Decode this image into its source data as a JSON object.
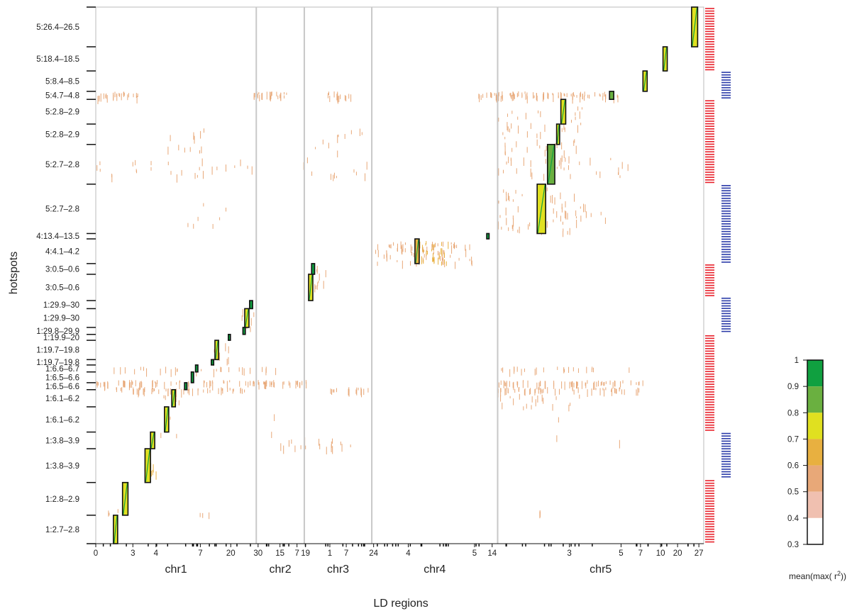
{
  "chart_data": {
    "type": "heatmap",
    "xlabel": "LD regions",
    "ylabel": "hotspots",
    "legend": {
      "title": "mean(max( r",
      "title_sup": "2",
      "title_end": "))",
      "ticks": [
        "1",
        "0.9",
        "0.8",
        "0.7",
        "0.6",
        "0.5",
        "0.4",
        "0.3"
      ],
      "scale": [
        {
          "from": 0.3,
          "to": 0.4,
          "color": "#ffffff"
        },
        {
          "from": 0.4,
          "to": 0.5,
          "color": "#f0c0b0"
        },
        {
          "from": 0.5,
          "to": 0.6,
          "color": "#e8a878"
        },
        {
          "from": 0.6,
          "to": 0.7,
          "color": "#e8b040"
        },
        {
          "from": 0.7,
          "to": 0.8,
          "color": "#e0e020"
        },
        {
          "from": 0.8,
          "to": 0.9,
          "color": "#6ab040"
        },
        {
          "from": 0.9,
          "to": 1.0,
          "color": "#10a040"
        }
      ]
    },
    "chromosomes": [
      {
        "name": "chr1",
        "x_from": 0,
        "x_to": 0.264
      },
      {
        "name": "chr2",
        "x_from": 0.264,
        "x_to": 0.343
      },
      {
        "name": "chr3",
        "x_from": 0.343,
        "x_to": 0.454
      },
      {
        "name": "chr4",
        "x_from": 0.454,
        "x_to": 0.661
      },
      {
        "name": "chr5",
        "x_from": 0.661,
        "x_to": 1.0
      }
    ],
    "x_ticks": [
      {
        "pos": 0.0,
        "label": "0"
      },
      {
        "pos": 0.061,
        "label": "3"
      },
      {
        "pos": 0.099,
        "label": "4"
      },
      {
        "pos": 0.172,
        "label": "7"
      },
      {
        "pos": 0.222,
        "label": "20"
      },
      {
        "pos": 0.267,
        "label": "30"
      },
      {
        "pos": 0.303,
        "label": "15"
      },
      {
        "pos": 0.331,
        "label": "7"
      },
      {
        "pos": 0.345,
        "label": "19"
      },
      {
        "pos": 0.385,
        "label": "1"
      },
      {
        "pos": 0.412,
        "label": "7"
      },
      {
        "pos": 0.457,
        "label": "24"
      },
      {
        "pos": 0.514,
        "label": "4"
      },
      {
        "pos": 0.623,
        "label": "5"
      },
      {
        "pos": 0.652,
        "label": "14"
      },
      {
        "pos": 0.779,
        "label": "3"
      },
      {
        "pos": 0.864,
        "label": "5"
      },
      {
        "pos": 0.896,
        "label": "7"
      },
      {
        "pos": 0.929,
        "label": "10"
      },
      {
        "pos": 0.957,
        "label": "20"
      },
      {
        "pos": 0.992,
        "label": "27"
      }
    ],
    "hotspots": [
      {
        "label": "5:26.4–26.5",
        "from": 0.0,
        "to": 0.074
      },
      {
        "label": "5:18.4–18.5",
        "from": 0.074,
        "to": 0.119
      },
      {
        "label": "5:8.4–8.5",
        "from": 0.119,
        "to": 0.157
      },
      {
        "label": "5:4.7–4.8",
        "from": 0.157,
        "to": 0.172
      },
      {
        "label": "5:2.8–2.9",
        "from": 0.172,
        "to": 0.218
      },
      {
        "label": "5:2.8–2.9",
        "from": 0.218,
        "to": 0.256
      },
      {
        "label": "5:2.7–2.8",
        "from": 0.256,
        "to": 0.33
      },
      {
        "label": "5:2.7–2.8",
        "from": 0.33,
        "to": 0.422
      },
      {
        "label": "4:13.4–13.5",
        "from": 0.422,
        "to": 0.432
      },
      {
        "label": "4:4.1–4.2",
        "from": 0.432,
        "to": 0.478
      },
      {
        "label": "3:0.5–0.6",
        "from": 0.478,
        "to": 0.498
      },
      {
        "label": "3:0.5–0.6",
        "from": 0.498,
        "to": 0.547
      },
      {
        "label": "1:29.9–30",
        "from": 0.547,
        "to": 0.562
      },
      {
        "label": "1:29.9–30",
        "from": 0.562,
        "to": 0.597
      },
      {
        "label": "1:29.8–29.9",
        "from": 0.597,
        "to": 0.61
      },
      {
        "label": "1:19.9–20",
        "from": 0.61,
        "to": 0.621
      },
      {
        "label": "1:19.7–19.8",
        "from": 0.621,
        "to": 0.657
      },
      {
        "label": "1:19.7–19.8",
        "from": 0.657,
        "to": 0.667
      },
      {
        "label": "1:6.6–6.7",
        "from": 0.667,
        "to": 0.68
      },
      {
        "label": "1:6.5–6.6",
        "from": 0.68,
        "to": 0.7
      },
      {
        "label": "1:6.5–6.6",
        "from": 0.7,
        "to": 0.713
      },
      {
        "label": "1:6.1–6.2",
        "from": 0.713,
        "to": 0.745
      },
      {
        "label": "1:6.1–6.2",
        "from": 0.745,
        "to": 0.792
      },
      {
        "label": "1:3.8–3.9",
        "from": 0.792,
        "to": 0.823
      },
      {
        "label": "1:3.8–3.9",
        "from": 0.823,
        "to": 0.886
      },
      {
        "label": "1:2.8–2.9",
        "from": 0.886,
        "to": 0.947
      },
      {
        "label": "1:2.7–2.8",
        "from": 0.947,
        "to": 1.0
      }
    ],
    "blocks": [
      {
        "y1": 0.0,
        "y2": 0.074,
        "x1": 0.98,
        "x2": 0.99,
        "r2": 0.75
      },
      {
        "y1": 0.074,
        "y2": 0.119,
        "x1": 0.933,
        "x2": 0.94,
        "r2": 0.72
      },
      {
        "y1": 0.119,
        "y2": 0.157,
        "x1": 0.9,
        "x2": 0.907,
        "r2": 0.72
      },
      {
        "y1": 0.157,
        "y2": 0.172,
        "x1": 0.845,
        "x2": 0.852,
        "r2": 0.85
      },
      {
        "y1": 0.172,
        "y2": 0.218,
        "x1": 0.765,
        "x2": 0.773,
        "r2": 0.75
      },
      {
        "y1": 0.218,
        "y2": 0.256,
        "x1": 0.758,
        "x2": 0.763,
        "r2": 0.75
      },
      {
        "y1": 0.256,
        "y2": 0.33,
        "x1": 0.743,
        "x2": 0.755,
        "r2": 0.82
      },
      {
        "y1": 0.33,
        "y2": 0.422,
        "x1": 0.726,
        "x2": 0.74,
        "r2": 0.78
      },
      {
        "y1": 0.422,
        "y2": 0.432,
        "x1": 0.643,
        "x2": 0.647,
        "r2": 0.9
      },
      {
        "y1": 0.432,
        "y2": 0.478,
        "x1": 0.525,
        "x2": 0.532,
        "r2": 0.62
      },
      {
        "y1": 0.478,
        "y2": 0.498,
        "x1": 0.355,
        "x2": 0.36,
        "r2": 0.9
      },
      {
        "y1": 0.498,
        "y2": 0.547,
        "x1": 0.35,
        "x2": 0.357,
        "r2": 0.75
      },
      {
        "y1": 0.547,
        "y2": 0.562,
        "x1": 0.253,
        "x2": 0.258,
        "r2": 0.9
      },
      {
        "y1": 0.562,
        "y2": 0.597,
        "x1": 0.245,
        "x2": 0.252,
        "r2": 0.75
      },
      {
        "y1": 0.597,
        "y2": 0.61,
        "x1": 0.242,
        "x2": 0.246,
        "r2": 0.9
      },
      {
        "y1": 0.61,
        "y2": 0.621,
        "x1": 0.218,
        "x2": 0.221,
        "r2": 0.9
      },
      {
        "y1": 0.621,
        "y2": 0.657,
        "x1": 0.196,
        "x2": 0.202,
        "r2": 0.78
      },
      {
        "y1": 0.657,
        "y2": 0.667,
        "x1": 0.19,
        "x2": 0.194,
        "r2": 0.9
      },
      {
        "y1": 0.667,
        "y2": 0.68,
        "x1": 0.164,
        "x2": 0.168,
        "r2": 0.9
      },
      {
        "y1": 0.68,
        "y2": 0.7,
        "x1": 0.157,
        "x2": 0.161,
        "r2": 0.9
      },
      {
        "y1": 0.7,
        "y2": 0.713,
        "x1": 0.146,
        "x2": 0.15,
        "r2": 0.9
      },
      {
        "y1": 0.713,
        "y2": 0.745,
        "x1": 0.125,
        "x2": 0.131,
        "r2": 0.75
      },
      {
        "y1": 0.745,
        "y2": 0.792,
        "x1": 0.113,
        "x2": 0.12,
        "r2": 0.75
      },
      {
        "y1": 0.792,
        "y2": 0.823,
        "x1": 0.09,
        "x2": 0.097,
        "r2": 0.75
      },
      {
        "y1": 0.823,
        "y2": 0.886,
        "x1": 0.081,
        "x2": 0.09,
        "r2": 0.75
      },
      {
        "y1": 0.886,
        "y2": 0.947,
        "x1": 0.044,
        "x2": 0.053,
        "r2": 0.72
      },
      {
        "y1": 0.947,
        "y2": 1.0,
        "x1": 0.029,
        "x2": 0.036,
        "r2": 0.75
      }
    ],
    "block_colors": {
      "outline": "#111111",
      "fill": "#e0e020",
      "diagonal": "#10a040"
    },
    "chrom_separator_color": "#c8c8c8",
    "side_bars": [
      {
        "y1": 0.0,
        "y2": 0.119,
        "color": "#e8202a"
      },
      {
        "y1": 0.119,
        "y2": 0.172,
        "color": "#2a3aa8"
      },
      {
        "y1": 0.172,
        "y2": 0.33,
        "color": "#e8202a"
      },
      {
        "y1": 0.33,
        "y2": 0.478,
        "color": "#2a3aa8"
      },
      {
        "y1": 0.478,
        "y2": 0.54,
        "color": "#e8202a"
      },
      {
        "y1": 0.54,
        "y2": 0.61,
        "color": "#2a3aa8"
      },
      {
        "y1": 0.61,
        "y2": 0.792,
        "color": "#e8202a"
      },
      {
        "y1": 0.792,
        "y2": 0.88,
        "color": "#2a3aa8"
      },
      {
        "y1": 0.88,
        "y2": 1.0,
        "color": "#e8202a"
      }
    ],
    "side_bar_blanks": [
      {
        "y1": 0.119,
        "y2": 0.119
      },
      {
        "y1": 0.172,
        "y2": 0.172
      }
    ]
  }
}
